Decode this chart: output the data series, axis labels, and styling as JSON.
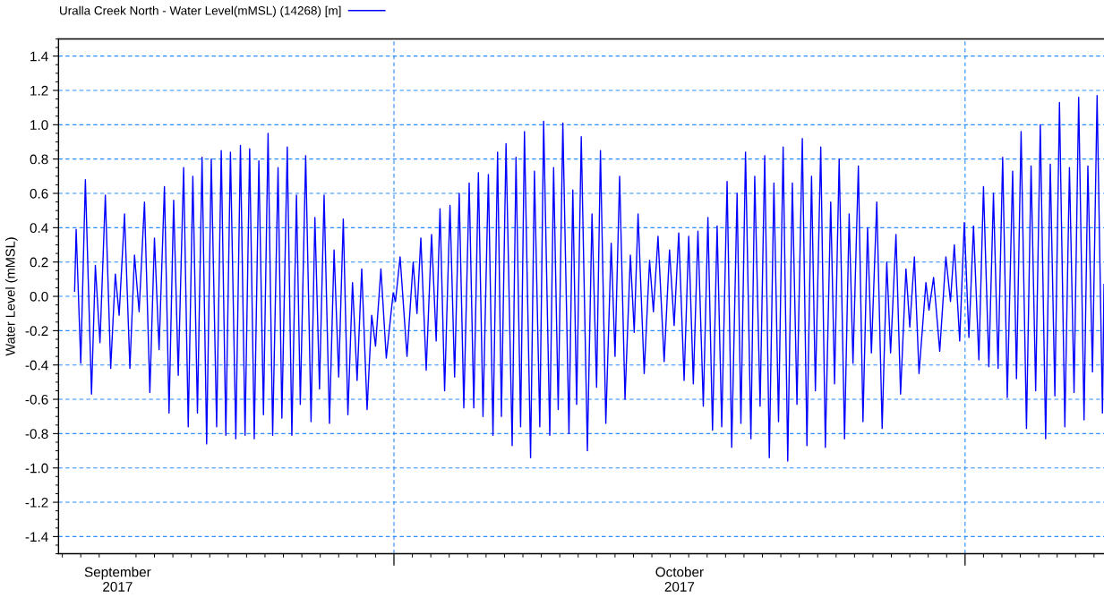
{
  "chart_data": {
    "type": "line",
    "ylabel": "Water Level (mMSL)",
    "xlim": [
      "2017-09-12T19:00",
      "2017-11-08T13:00"
    ],
    "xticks": [
      {
        "value": "2017-09-16",
        "label": "September\n2017"
      },
      {
        "value": "2017-10-01",
        "label": null
      },
      {
        "value": "2017-10-16T12:00",
        "label": "October\n2017"
      },
      {
        "value": "2017-11-01",
        "label": null
      }
    ],
    "ylim": [
      -1.5,
      1.5
    ],
    "yticks": [
      -1.4,
      -1.2,
      {
        "value": -1.0,
        "label": "-1.0"
      },
      -0.8,
      -0.6,
      -0.4,
      -0.2,
      {
        "value": 0,
        "label": "0.0"
      },
      0.2,
      0.4,
      0.6,
      0.8,
      {
        "value": 1.0,
        "label": "1.0"
      },
      1.2,
      1.4
    ],
    "grid": true,
    "legend": "top left",
    "line_style": "solid",
    "series": [
      {
        "name": "Uralla Creek North - Water Level(mMSL) (14268) [m]",
        "color": "#0000ff",
        "x": [
          "2017-09-13T16:00",
          "2017-09-13T18:00",
          "2017-09-14T00:00",
          "2017-09-14T06:00",
          "2017-09-14T14:00",
          "2017-09-14T19:00",
          "2017-09-15T01:00",
          "2017-09-15T08:00",
          "2017-09-15T15:00",
          "2017-09-15T21:00",
          "2017-09-16T02:00",
          "2017-09-16T09:00",
          "2017-09-16T16:00",
          "2017-09-16T22:00",
          "2017-09-17T04:00",
          "2017-09-17T11:00",
          "2017-09-17T18:00",
          "2017-09-18T00:00",
          "2017-09-18T06:00",
          "2017-09-18T13:00",
          "2017-09-18T19:00",
          "2017-09-19T01:00",
          "2017-09-19T07:00",
          "2017-09-19T14:00",
          "2017-09-19T20:00",
          "2017-09-20T02:00",
          "2017-09-20T08:00",
          "2017-09-20T14:00",
          "2017-09-20T20:00",
          "2017-09-21T02:00",
          "2017-09-21T09:00",
          "2017-09-21T15:00",
          "2017-09-21T21:00",
          "2017-09-22T03:00",
          "2017-09-22T10:00",
          "2017-09-22T16:00",
          "2017-09-22T22:00",
          "2017-09-23T04:00",
          "2017-09-23T10:00",
          "2017-09-23T16:00",
          "2017-09-23T22:00",
          "2017-09-24T04:00",
          "2017-09-24T10:00",
          "2017-09-24T17:00",
          "2017-09-24T22:00",
          "2017-09-25T05:00",
          "2017-09-25T11:00",
          "2017-09-25T17:00",
          "2017-09-25T22:00",
          "2017-09-26T05:00",
          "2017-09-26T12:00",
          "2017-09-26T17:00",
          "2017-09-26T23:00",
          "2017-09-27T05:00",
          "2017-09-27T12:00",
          "2017-09-27T18:00",
          "2017-09-28T00:00",
          "2017-09-28T06:00",
          "2017-09-28T12:00",
          "2017-09-28T18:00",
          "2017-09-29T00:00",
          "2017-09-29T06:00",
          "2017-09-29T13:00",
          "2017-09-29T19:00",
          "2017-09-30T00:00",
          "2017-09-30T07:00",
          "2017-09-30T14:00",
          "2017-09-30T23:00",
          "2017-10-01T02:00",
          "2017-10-01T08:00",
          "2017-10-01T17:00",
          "2017-10-02T01:00",
          "2017-10-02T06:00",
          "2017-10-02T11:00",
          "2017-10-02T18:00",
          "2017-10-03T01:00",
          "2017-10-03T07:00",
          "2017-10-03T12:00",
          "2017-10-03T18:00",
          "2017-10-04T01:00",
          "2017-10-04T07:00",
          "2017-10-04T13:00",
          "2017-10-04T19:00",
          "2017-10-05T02:00",
          "2017-10-05T08:00",
          "2017-10-05T14:00",
          "2017-10-05T20:00",
          "2017-10-06T03:00",
          "2017-10-06T09:00",
          "2017-10-06T15:00",
          "2017-10-06T20:00",
          "2017-10-07T02:00",
          "2017-10-07T10:00",
          "2017-10-07T15:00",
          "2017-10-07T21:00",
          "2017-10-08T02:00",
          "2017-10-08T10:00",
          "2017-10-08T15:00",
          "2017-10-08T22:00",
          "2017-10-09T03:00",
          "2017-10-09T11:00",
          "2017-10-09T16:00",
          "2017-10-09T22:00",
          "2017-10-10T04:00",
          "2017-10-10T12:00",
          "2017-10-10T17:00",
          "2017-10-10T22:00",
          "2017-10-11T04:00",
          "2017-10-11T12:00",
          "2017-10-11T18:00",
          "2017-10-12T00:00",
          "2017-10-12T05:00",
          "2017-10-12T12:00",
          "2017-10-12T19:00",
          "2017-10-13T00:00",
          "2017-10-13T06:00",
          "2017-10-13T13:00",
          "2017-10-13T20:00",
          "2017-10-14T01:00",
          "2017-10-14T06:00",
          "2017-10-14T14:00",
          "2017-10-14T21:00",
          "2017-10-15T02:00",
          "2017-10-15T08:00",
          "2017-10-15T16:00",
          "2017-10-15T23:00",
          "2017-10-16T05:00",
          "2017-10-16T11:00",
          "2017-10-16T18:00",
          "2017-10-17T00:00",
          "2017-10-17T06:00",
          "2017-10-17T12:00",
          "2017-10-17T19:00",
          "2017-10-18T01:00",
          "2017-10-18T07:00",
          "2017-10-18T13:00",
          "2017-10-18T19:00",
          "2017-10-19T02:00",
          "2017-10-19T08:00",
          "2017-10-19T15:00",
          "2017-10-19T20:00",
          "2017-10-20T02:00",
          "2017-10-20T09:00",
          "2017-10-20T14:00",
          "2017-10-20T21:00",
          "2017-10-21T03:00",
          "2017-10-21T09:00",
          "2017-10-21T15:00",
          "2017-10-21T21:00",
          "2017-10-22T03:00",
          "2017-10-22T09:00",
          "2017-10-22T15:00",
          "2017-10-22T21:00",
          "2017-10-23T04:00",
          "2017-10-23T10:00",
          "2017-10-23T16:00",
          "2017-10-23T21:00",
          "2017-10-24T04:00",
          "2017-10-24T10:00",
          "2017-10-24T17:00",
          "2017-10-24T22:00",
          "2017-10-25T04:00",
          "2017-10-25T11:00",
          "2017-10-25T17:00",
          "2017-10-25T22:00",
          "2017-10-26T05:00",
          "2017-10-26T11:00",
          "2017-10-26T17:00",
          "2017-10-26T22:00",
          "2017-10-27T05:00",
          "2017-10-27T12:00",
          "2017-10-27T18:00",
          "2017-10-27T23:00",
          "2017-10-28T06:00",
          "2017-10-28T12:00",
          "2017-10-28T19:00",
          "2017-10-29T00:00",
          "2017-10-29T06:00",
          "2017-10-29T12:00",
          "2017-10-29T21:00",
          "2017-10-30T01:00",
          "2017-10-30T07:00",
          "2017-10-30T15:00",
          "2017-10-30T23:00",
          "2017-10-31T05:00",
          "2017-10-31T10:00",
          "2017-10-31T17:00",
          "2017-10-31T23:00",
          "2017-11-01T05:00",
          "2017-11-01T11:00",
          "2017-11-01T18:00",
          "2017-11-02T00:00",
          "2017-11-02T07:00",
          "2017-11-02T13:00",
          "2017-11-02T19:00",
          "2017-11-03T01:00",
          "2017-11-03T07:00",
          "2017-11-03T14:00",
          "2017-11-03T19:00",
          "2017-11-04T01:00",
          "2017-11-04T08:00",
          "2017-11-04T14:00",
          "2017-11-04T20:00",
          "2017-11-05T02:00",
          "2017-11-05T09:00",
          "2017-11-05T15:00",
          "2017-11-05T21:00",
          "2017-11-06T03:00",
          "2017-11-06T10:00",
          "2017-11-06T16:00",
          "2017-11-06T22:00",
          "2017-11-07T04:00",
          "2017-11-07T11:00",
          "2017-11-07T16:00",
          "2017-11-07T22:00",
          "2017-11-08T04:00",
          "2017-11-08T11:00",
          "2017-11-08T13:00"
        ],
        "values": [
          0.03,
          0.39,
          -0.39,
          0.68,
          -0.57,
          0.18,
          -0.27,
          0.59,
          -0.42,
          0.13,
          -0.11,
          0.48,
          -0.42,
          0.24,
          -0.09,
          0.55,
          -0.56,
          0.34,
          -0.31,
          0.64,
          -0.68,
          0.56,
          -0.46,
          0.75,
          -0.76,
          0.7,
          -0.68,
          0.81,
          -0.86,
          0.8,
          -0.76,
          0.85,
          -0.81,
          0.84,
          -0.83,
          0.88,
          -0.81,
          0.86,
          -0.83,
          0.79,
          -0.69,
          0.95,
          -0.81,
          0.75,
          -0.71,
          0.87,
          -0.81,
          0.59,
          -0.63,
          0.82,
          -0.73,
          0.46,
          -0.54,
          0.59,
          -0.74,
          0.27,
          -0.47,
          0.45,
          -0.69,
          0.08,
          -0.49,
          0.16,
          -0.66,
          -0.11,
          -0.29,
          0.16,
          -0.36,
          0.02,
          -0.03,
          0.23,
          -0.35,
          0.2,
          -0.1,
          0.34,
          -0.43,
          0.36,
          -0.26,
          0.51,
          -0.55,
          0.53,
          -0.47,
          0.6,
          -0.65,
          0.66,
          -0.65,
          0.72,
          -0.7,
          0.71,
          -0.81,
          0.84,
          -0.7,
          0.89,
          -0.87,
          0.81,
          -0.76,
          0.96,
          -0.94,
          0.73,
          -0.76,
          1.02,
          -0.81,
          0.75,
          -0.66,
          1.01,
          -0.8,
          0.62,
          -0.63,
          0.93,
          -0.9,
          0.48,
          -0.53,
          0.85,
          -0.74,
          0.31,
          -0.35,
          0.7,
          -0.6,
          0.24,
          -0.21,
          0.48,
          -0.45,
          0.21,
          -0.09,
          0.35,
          -0.38,
          0.27,
          -0.17,
          0.37,
          -0.49,
          0.35,
          -0.51,
          0.38,
          -0.64,
          0.46,
          -0.78,
          0.41,
          -0.76,
          0.67,
          -0.88,
          0.6,
          -0.74,
          0.84,
          -0.83,
          0.7,
          -0.64,
          0.82,
          -0.94,
          0.66,
          -0.73,
          0.87,
          -0.96,
          0.66,
          -0.63,
          0.92,
          -0.87,
          0.7,
          -0.55,
          0.87,
          -0.88,
          0.55,
          -0.51,
          0.8,
          -0.83,
          0.48,
          -0.39,
          0.76,
          -0.73,
          0.4,
          -0.33,
          0.55,
          -0.77,
          0.2,
          -0.33,
          0.36,
          -0.57,
          0.16,
          -0.18,
          0.23,
          -0.45,
          0.08,
          -0.08,
          0.11,
          -0.32,
          0.23,
          -0.03,
          0.3,
          -0.26,
          0.43,
          -0.24,
          0.41,
          -0.37,
          0.64,
          -0.41,
          0.6,
          -0.42,
          0.81,
          -0.59,
          0.73,
          -0.48,
          0.96,
          -0.77,
          0.76,
          -0.55,
          1.0,
          -0.83,
          0.77,
          -0.58,
          1.13,
          -0.76,
          0.75,
          -0.56,
          1.16,
          -0.72,
          0.76,
          -0.44,
          1.17,
          -0.68,
          0.07
        ]
      }
    ]
  }
}
